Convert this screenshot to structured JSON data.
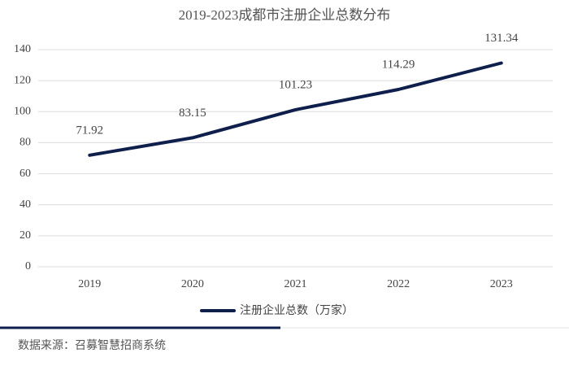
{
  "chart_data": {
    "type": "line",
    "title": "2019-2023成都市注册企业总数分布",
    "categories": [
      "2019",
      "2020",
      "2021",
      "2022",
      "2023"
    ],
    "series": [
      {
        "name": "注册企业总数（万家）",
        "color": "#0f1f4b",
        "values": [
          71.92,
          83.15,
          101.23,
          114.29,
          131.34
        ]
      }
    ],
    "ylim": [
      0,
      140
    ],
    "yticks": [
      0,
      20,
      40,
      60,
      80,
      100,
      120,
      140
    ],
    "grid": true,
    "legend": "bottom",
    "data_labels": true
  },
  "source": "数据来源：召募智慧招商系统"
}
